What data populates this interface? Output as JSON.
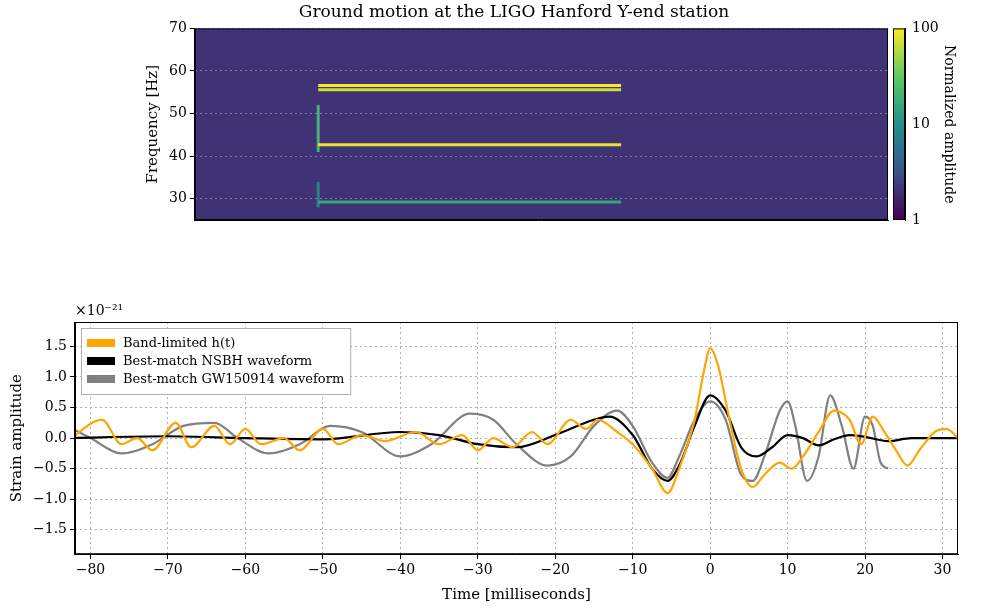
{
  "chart_data": [
    {
      "type": "heatmap",
      "title": "Ground motion at the LIGO Hanford Y-end station",
      "y_label": "Frequency [Hz]",
      "xlim": [
        0,
        100
      ],
      "ylim": [
        25,
        70
      ],
      "yticks": [
        30,
        40,
        50,
        60,
        70
      ],
      "tick_labels": "y",
      "grid": true,
      "background_amplitude": 2,
      "segments": [
        {
          "x": [
            17.8,
            61.5
          ],
          "y": [
            56.6,
            56.6
          ],
          "amplitude": 100
        },
        {
          "x": [
            17.8,
            61.5
          ],
          "y": [
            55.6,
            55.6
          ],
          "amplitude": 70
        },
        {
          "x": [
            17.8,
            61.5
          ],
          "y": [
            42.7,
            42.7
          ],
          "amplitude": 90
        },
        {
          "x": [
            17.8,
            61.5
          ],
          "y": [
            29.2,
            29.2
          ],
          "amplitude": 15
        },
        {
          "x": [
            17.8,
            17.8
          ],
          "y": [
            41,
            52
          ],
          "amplitude": 20
        },
        {
          "x": [
            17.8,
            17.8
          ],
          "y": [
            28,
            34
          ],
          "amplitude": 8
        }
      ],
      "colorbar": {
        "label": "Normalized amplitude",
        "range": [
          1,
          100
        ],
        "ticks": [
          1,
          10,
          100
        ],
        "log": true
      }
    },
    {
      "type": "line",
      "x_label": "Time [milliseconds]",
      "y_label": "Strain amplitude",
      "y_scale_text": "×10⁻²¹",
      "xlim": [
        -82,
        32
      ],
      "xticks": [
        {
          "value": -80,
          "label": "−80"
        },
        {
          "value": -70,
          "label": "−70"
        },
        {
          "value": -60,
          "label": "−60"
        },
        {
          "value": -50,
          "label": "−50"
        },
        {
          "value": -40,
          "label": "−40"
        },
        {
          "value": -30,
          "label": "−30"
        },
        {
          "value": -20,
          "label": "−20"
        },
        {
          "value": -10,
          "label": "−10"
        },
        0,
        10,
        20,
        30
      ],
      "ylim": [
        -1.9,
        1.9
      ],
      "yticks": [
        {
          "value": -1.5,
          "label": "−1.5"
        },
        {
          "value": -1,
          "label": "−1.0"
        },
        {
          "value": -0.5,
          "label": "−0.5"
        },
        {
          "value": 0,
          "label": "0.0"
        },
        0.5,
        {
          "value": 1,
          "label": "1.0"
        },
        1.5
      ],
      "grid": true,
      "legend": "upper left",
      "series": [
        {
          "name": "Band-limited h(t)",
          "color": "#ffa500",
          "x": [
            -83,
            -78.5,
            -76,
            -74,
            -72,
            -69,
            -67,
            -64,
            -62,
            -60,
            -58,
            -55,
            -53,
            -50,
            -48,
            -45,
            -42,
            -38,
            -35,
            -32,
            -30,
            -28,
            -25.5,
            -23,
            -21,
            -18,
            -16,
            -14.5,
            -12,
            -10,
            -7.5,
            -5.5,
            -4,
            -2,
            -0.8,
            0,
            1,
            2.5,
            4,
            5.5,
            7,
            9,
            10.5,
            12,
            14,
            16,
            18,
            19.5,
            21,
            22.5,
            24,
            25.5,
            27,
            29,
            30.5,
            32
          ],
          "values": [
            -0.05,
            0.3,
            -0.1,
            0.0,
            -0.2,
            0.25,
            -0.15,
            0.2,
            -0.1,
            0.15,
            -0.1,
            0.0,
            -0.2,
            0.15,
            -0.1,
            0.05,
            -0.05,
            0.1,
            -0.1,
            0.05,
            -0.2,
            0.0,
            -0.15,
            0.1,
            -0.1,
            0.3,
            0.15,
            0.3,
            0.1,
            -0.1,
            -0.5,
            -0.9,
            -0.5,
            0.3,
            1.1,
            1.47,
            1.2,
            0.3,
            -0.5,
            -0.8,
            -0.6,
            -0.4,
            -0.5,
            -0.3,
            0.1,
            0.45,
            0.3,
            -0.1,
            0.35,
            0.1,
            -0.2,
            -0.45,
            -0.2,
            0.1,
            0.15,
            0.0
          ]
        },
        {
          "name": "Best-match NSBH waveform",
          "color": "#000000",
          "x": [
            -83,
            -70,
            -60,
            -50,
            -40,
            -35,
            -30,
            -25,
            -20,
            -15,
            -13,
            -10,
            -7.5,
            -5.5,
            -4,
            -2,
            0,
            2,
            4,
            6,
            8,
            10,
            12,
            14,
            16,
            18,
            20,
            23,
            26,
            32
          ],
          "values": [
            0.0,
            0.03,
            0.0,
            -0.02,
            0.1,
            0.05,
            -0.1,
            -0.15,
            0.05,
            0.3,
            0.35,
            0.05,
            -0.5,
            -0.7,
            -0.45,
            0.2,
            0.7,
            0.45,
            -0.15,
            -0.3,
            -0.15,
            0.05,
            0.0,
            -0.12,
            -0.02,
            0.05,
            0.02,
            -0.05,
            0.0,
            0.0
          ]
        },
        {
          "name": "Best-match GW150914 waveform",
          "color": "#808080",
          "x": [
            -83,
            -80,
            -76,
            -72,
            -68,
            -64,
            -61,
            -57,
            -53,
            -49,
            -45,
            -40,
            -36,
            -31,
            -28,
            -25,
            -21,
            -18,
            -15,
            -12,
            -10,
            -7.5,
            -5.5,
            -4,
            -2,
            0,
            2,
            4,
            5.5,
            7,
            9,
            10,
            11,
            12.5,
            14,
            15.5,
            17,
            18.5,
            20,
            21,
            22,
            23
          ],
          "values": [
            0.2,
            0.0,
            -0.25,
            -0.1,
            0.2,
            0.25,
            0.0,
            -0.25,
            -0.1,
            0.2,
            0.1,
            -0.3,
            -0.1,
            0.4,
            0.3,
            -0.1,
            -0.45,
            -0.3,
            0.2,
            0.45,
            0.2,
            -0.4,
            -0.65,
            -0.3,
            0.3,
            0.6,
            0.3,
            -0.6,
            -0.7,
            -0.3,
            0.45,
            0.6,
            0.2,
            -0.7,
            -0.3,
            0.7,
            0.2,
            -0.5,
            0.35,
            0.2,
            -0.4,
            -0.5
          ]
        }
      ]
    }
  ]
}
